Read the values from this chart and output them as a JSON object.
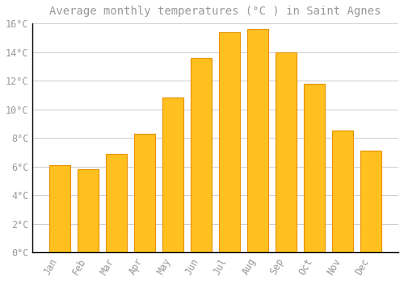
{
  "title": "Average monthly temperatures (°C ) in Saint Agnes",
  "months": [
    "Jan",
    "Feb",
    "Mar",
    "Apr",
    "May",
    "Jun",
    "Jul",
    "Aug",
    "Sep",
    "Oct",
    "Nov",
    "Dec"
  ],
  "values": [
    6.1,
    5.8,
    6.9,
    8.3,
    10.8,
    13.6,
    15.4,
    15.6,
    14.0,
    11.8,
    8.5,
    7.1
  ],
  "bar_color_top": "#FFC020",
  "bar_color_bottom": "#FFA000",
  "bar_edge_color": "#E89000",
  "background_color": "#FFFFFF",
  "grid_color": "#CCCCCC",
  "text_color": "#999999",
  "spine_color": "#000000",
  "ylim": [
    0,
    16
  ],
  "ytick_step": 2,
  "title_fontsize": 10,
  "tick_fontsize": 8.5,
  "font_family": "monospace"
}
